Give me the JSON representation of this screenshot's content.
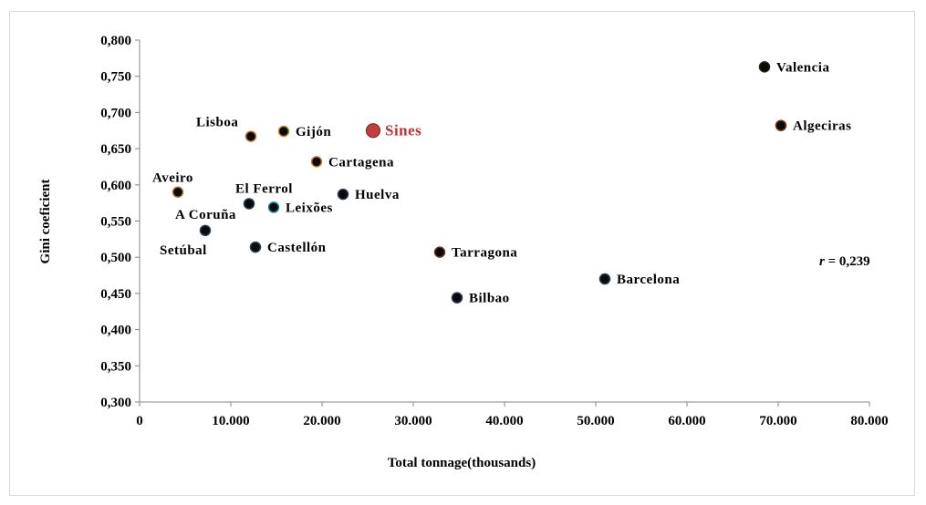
{
  "chart_data": {
    "type": "scatter",
    "title": "",
    "xlabel": "Total tonnage(thousands)",
    "ylabel": "Gini coeficient",
    "xlim": [
      0,
      80000
    ],
    "ylim": [
      0.3,
      0.8
    ],
    "x_ticks": [
      0,
      10000,
      20000,
      30000,
      40000,
      50000,
      60000,
      70000,
      80000
    ],
    "x_tick_labels": [
      "0",
      "10.000",
      "20.000",
      "30.000",
      "40.000",
      "50.000",
      "60.000",
      "70.000",
      "80.000"
    ],
    "y_ticks": [
      0.3,
      0.35,
      0.4,
      0.45,
      0.5,
      0.55,
      0.6,
      0.65,
      0.7,
      0.75,
      0.8
    ],
    "y_tick_labels": [
      "0,300",
      "0,350",
      "0,400",
      "0,450",
      "0,500",
      "0,550",
      "0,600",
      "0,650",
      "0,700",
      "0,750",
      "0,800"
    ],
    "grid": false,
    "annotation": {
      "prefix": "r",
      "text": " = 0,239"
    },
    "colors": {
      "point": "#0a0a0a",
      "highlight": "#c0403e",
      "highlight_label": "#c0302e"
    },
    "points": [
      {
        "label": "Valencia",
        "x": 68500,
        "y": 0.763,
        "label_pos": "right",
        "ring": "#2b1f12"
      },
      {
        "label": "Algeciras",
        "x": 70300,
        "y": 0.682,
        "label_pos": "right",
        "ring": "#6b3a1a"
      },
      {
        "label": "Lisboa",
        "x": 12200,
        "y": 0.667,
        "label_pos": "above-left",
        "ring": "#c77b2a"
      },
      {
        "label": "Gijón",
        "x": 15800,
        "y": 0.674,
        "label_pos": "right",
        "ring": "#b58a2a"
      },
      {
        "label": "Sines",
        "x": 25600,
        "y": 0.675,
        "label_pos": "right",
        "highlight": true
      },
      {
        "label": "Cartagena",
        "x": 19400,
        "y": 0.632,
        "label_pos": "right",
        "ring": "#c77b2a"
      },
      {
        "label": "Aveiro",
        "x": 4200,
        "y": 0.59,
        "label_pos": "above-left",
        "ring": "#a87a2a"
      },
      {
        "label": "El Ferrol",
        "x": 12000,
        "y": 0.574,
        "label_pos": "above-right",
        "ring": "#2a3d5a"
      },
      {
        "label": "Huelva",
        "x": 22300,
        "y": 0.587,
        "label_pos": "right",
        "ring": "#2a3d5a"
      },
      {
        "label": "Leixões",
        "x": 14700,
        "y": 0.569,
        "label_pos": "right",
        "ring": "#1f8a8a"
      },
      {
        "label": "A Coruña",
        "x": 7200,
        "y": 0.537,
        "label_pos": "above-right",
        "ring": "#2a3d5a"
      },
      {
        "label": "Setúbal",
        "x": 7200,
        "y": 0.537,
        "label_pos": "below-left",
        "ring": "#2a3d5a",
        "no_marker": true
      },
      {
        "label": "Castellón",
        "x": 12700,
        "y": 0.514,
        "label_pos": "right",
        "ring": "#2a3d5a"
      },
      {
        "label": "Tarragona",
        "x": 32900,
        "y": 0.507,
        "label_pos": "right",
        "ring": "#6b3a1a"
      },
      {
        "label": "Barcelona",
        "x": 51000,
        "y": 0.47,
        "label_pos": "right",
        "ring": "#2a3d5a"
      },
      {
        "label": "Bilbao",
        "x": 34800,
        "y": 0.444,
        "label_pos": "right",
        "ring": "#2a3d5a"
      }
    ]
  }
}
